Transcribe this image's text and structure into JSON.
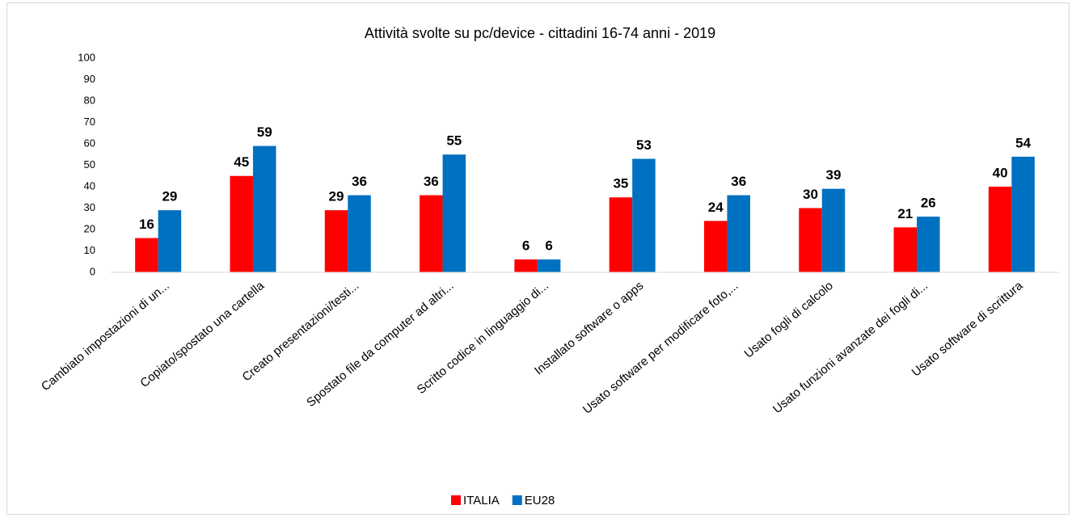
{
  "chart_data": {
    "type": "bar",
    "title": "Attività svolte su pc/device - cittadini 16-74 anni - 2019",
    "categories": [
      "Cambiato impostazioni di un...",
      "Copiato/spostato una cartella",
      "Creato presentazioni/testi...",
      "Spostato file da computer ad altri...",
      "Scritto codice in linguaggio di...",
      "Installato software o apps",
      "Usato software per modificare foto,...",
      "Usato fogli di calcolo",
      "Usato funzioni avanzate dei fogli di...",
      "Usato software di scrittura"
    ],
    "series": [
      {
        "name": "ITALIA",
        "color": "#ff0000",
        "values": [
          16,
          45,
          29,
          36,
          6,
          35,
          24,
          30,
          21,
          40
        ]
      },
      {
        "name": "EU28",
        "color": "#0070c0",
        "values": [
          29,
          59,
          36,
          55,
          6,
          53,
          36,
          39,
          26,
          54
        ]
      }
    ],
    "ylim": [
      0,
      100
    ],
    "yticks": [
      0,
      10,
      20,
      30,
      40,
      50,
      60,
      70,
      80,
      90,
      100
    ],
    "grid": false,
    "legend": "bottom"
  }
}
